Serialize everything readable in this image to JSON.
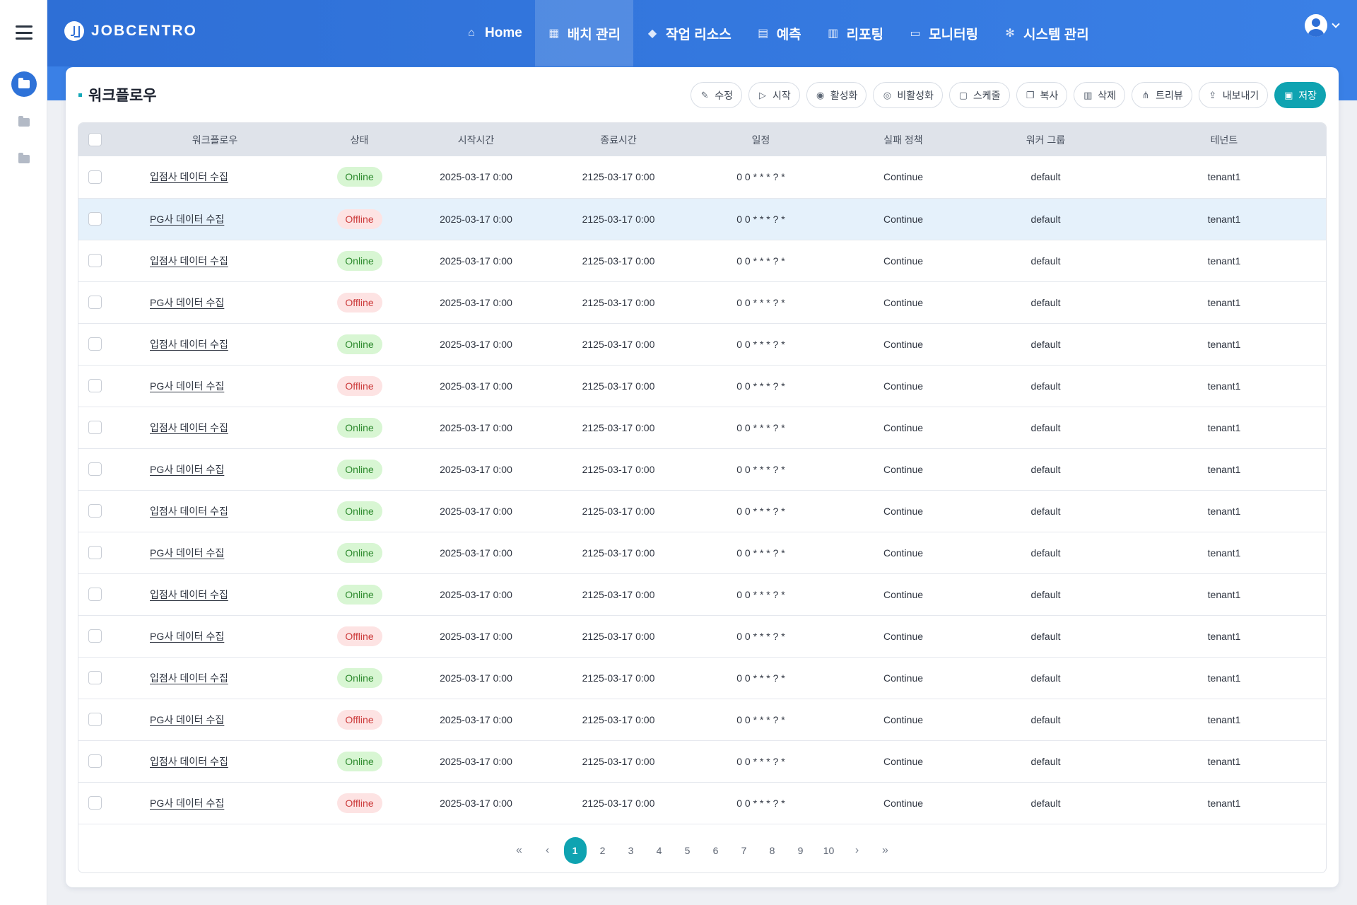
{
  "app": {
    "logo_text": "JOBCENTRO"
  },
  "colors": {
    "header": "#2e6fd6",
    "accent": "#0fa3b1",
    "online": "#2d8a2d",
    "offline": "#cc3a3a"
  },
  "nav": [
    {
      "label": "Home",
      "icon": "home-icon",
      "glyph": "⌂"
    },
    {
      "label": "배치 관리",
      "icon": "grid-icon",
      "glyph": "▦"
    },
    {
      "label": "작업 리소스",
      "icon": "layers-icon",
      "glyph": "◆"
    },
    {
      "label": "예측",
      "icon": "calendar-icon",
      "glyph": "▤"
    },
    {
      "label": "리포팅",
      "icon": "report-icon",
      "glyph": "▥"
    },
    {
      "label": "모니터링",
      "icon": "monitor-icon",
      "glyph": "▭"
    },
    {
      "label": "시스템 관리",
      "icon": "settings-icon",
      "glyph": "✻"
    }
  ],
  "page": {
    "title": "워크플로우"
  },
  "toolbar": [
    {
      "label": "수정",
      "icon": "edit-icon",
      "glyph": "✎"
    },
    {
      "label": "시작",
      "icon": "play-icon",
      "glyph": "▷"
    },
    {
      "label": "활성화",
      "icon": "toggle-on-icon",
      "glyph": "◉"
    },
    {
      "label": "비활성화",
      "icon": "toggle-off-icon",
      "glyph": "◎"
    },
    {
      "label": "스케줄",
      "icon": "calendar-icon",
      "glyph": "▢"
    },
    {
      "label": "복사",
      "icon": "copy-icon",
      "glyph": "❐"
    },
    {
      "label": "삭제",
      "icon": "trash-icon",
      "glyph": "▥"
    },
    {
      "label": "트리뷰",
      "icon": "tree-icon",
      "glyph": "⋔"
    },
    {
      "label": "내보내기",
      "icon": "export-icon",
      "glyph": "⇪"
    },
    {
      "label": "저장",
      "icon": "save-icon",
      "glyph": "▣"
    }
  ],
  "table": {
    "columns": [
      "워크플로우",
      "상태",
      "시작시간",
      "종료시간",
      "일정",
      "실패 정책",
      "워커 그룹",
      "테넌트"
    ],
    "rows": [
      {
        "name": "입점사 데이터 수집",
        "status": "Online",
        "start": "2025-03-17 0:00",
        "end": "2125-03-17 0:00",
        "schedule": "0 0 * * * ? *",
        "policy": "Continue",
        "group": "default",
        "tenant": "tenant1"
      },
      {
        "name": "PG사 데이터 수집",
        "status": "Offline",
        "start": "2025-03-17 0:00",
        "end": "2125-03-17 0:00",
        "schedule": "0 0 * * * ? *",
        "policy": "Continue",
        "group": "default",
        "tenant": "tenant1"
      },
      {
        "name": "입점사 데이터 수집",
        "status": "Online",
        "start": "2025-03-17 0:00",
        "end": "2125-03-17 0:00",
        "schedule": "0 0 * * * ? *",
        "policy": "Continue",
        "group": "default",
        "tenant": "tenant1"
      },
      {
        "name": "PG사 데이터 수집",
        "status": "Offline",
        "start": "2025-03-17 0:00",
        "end": "2125-03-17 0:00",
        "schedule": "0 0 * * * ? *",
        "policy": "Continue",
        "group": "default",
        "tenant": "tenant1"
      },
      {
        "name": "입점사 데이터 수집",
        "status": "Online",
        "start": "2025-03-17 0:00",
        "end": "2125-03-17 0:00",
        "schedule": "0 0 * * * ? *",
        "policy": "Continue",
        "group": "default",
        "tenant": "tenant1"
      },
      {
        "name": "PG사 데이터 수집",
        "status": "Offline",
        "start": "2025-03-17 0:00",
        "end": "2125-03-17 0:00",
        "schedule": "0 0 * * * ? *",
        "policy": "Continue",
        "group": "default",
        "tenant": "tenant1"
      },
      {
        "name": "입점사 데이터 수집",
        "status": "Online",
        "start": "2025-03-17 0:00",
        "end": "2125-03-17 0:00",
        "schedule": "0 0 * * * ? *",
        "policy": "Continue",
        "group": "default",
        "tenant": "tenant1"
      },
      {
        "name": "PG사 데이터 수집",
        "status": "Online",
        "start": "2025-03-17 0:00",
        "end": "2125-03-17 0:00",
        "schedule": "0 0 * * * ? *",
        "policy": "Continue",
        "group": "default",
        "tenant": "tenant1"
      },
      {
        "name": "입점사 데이터 수집",
        "status": "Online",
        "start": "2025-03-17 0:00",
        "end": "2125-03-17 0:00",
        "schedule": "0 0 * * * ? *",
        "policy": "Continue",
        "group": "default",
        "tenant": "tenant1"
      },
      {
        "name": "PG사 데이터 수집",
        "status": "Online",
        "start": "2025-03-17 0:00",
        "end": "2125-03-17 0:00",
        "schedule": "0 0 * * * ? *",
        "policy": "Continue",
        "group": "default",
        "tenant": "tenant1"
      },
      {
        "name": "입점사 데이터 수집",
        "status": "Online",
        "start": "2025-03-17 0:00",
        "end": "2125-03-17 0:00",
        "schedule": "0 0 * * * ? *",
        "policy": "Continue",
        "group": "default",
        "tenant": "tenant1"
      },
      {
        "name": "PG사 데이터 수집",
        "status": "Offline",
        "start": "2025-03-17 0:00",
        "end": "2125-03-17 0:00",
        "schedule": "0 0 * * * ? *",
        "policy": "Continue",
        "group": "default",
        "tenant": "tenant1"
      },
      {
        "name": "입점사 데이터 수집",
        "status": "Online",
        "start": "2025-03-17 0:00",
        "end": "2125-03-17 0:00",
        "schedule": "0 0 * * * ? *",
        "policy": "Continue",
        "group": "default",
        "tenant": "tenant1"
      },
      {
        "name": "PG사 데이터 수집",
        "status": "Offline",
        "start": "2025-03-17 0:00",
        "end": "2125-03-17 0:00",
        "schedule": "0 0 * * * ? *",
        "policy": "Continue",
        "group": "default",
        "tenant": "tenant1"
      },
      {
        "name": "입점사 데이터 수집",
        "status": "Online",
        "start": "2025-03-17 0:00",
        "end": "2125-03-17 0:00",
        "schedule": "0 0 * * * ? *",
        "policy": "Continue",
        "group": "default",
        "tenant": "tenant1"
      },
      {
        "name": "PG사 데이터 수집",
        "status": "Offline",
        "start": "2025-03-17 0:00",
        "end": "2125-03-17 0:00",
        "schedule": "0 0 * * * ? *",
        "policy": "Continue",
        "group": "default",
        "tenant": "tenant1"
      }
    ]
  },
  "pagination": {
    "first": "«",
    "prev": "‹",
    "next": "›",
    "last": "»",
    "pages": [
      "1",
      "2",
      "3",
      "4",
      "5",
      "6",
      "7",
      "8",
      "9",
      "10"
    ],
    "current": "1"
  }
}
